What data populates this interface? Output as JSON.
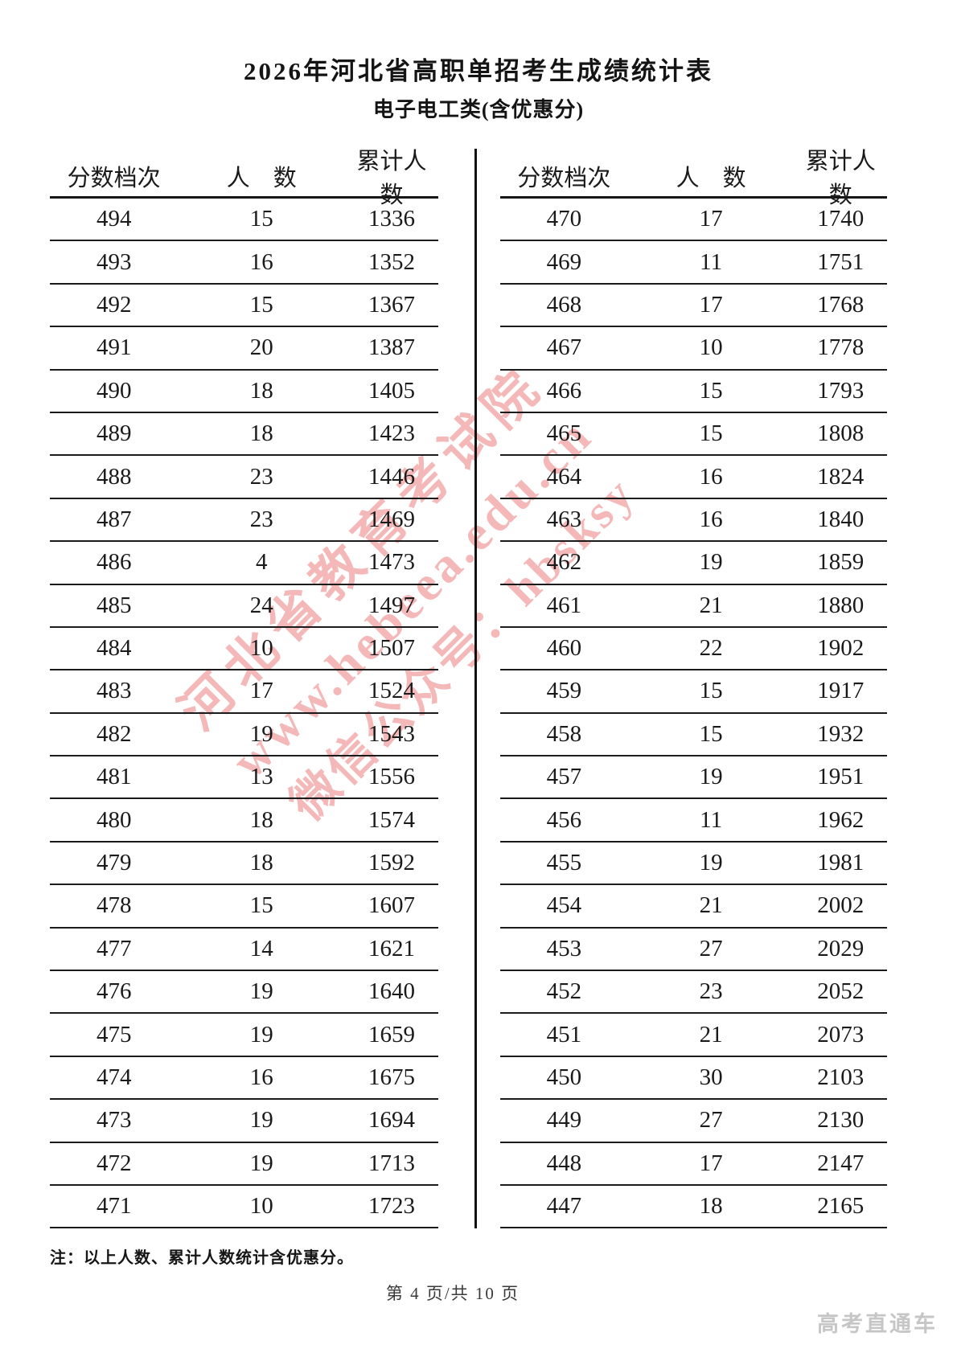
{
  "page": {
    "title": "2026年河北省高职单招考生成绩统计表",
    "subtitle": "电子电工类(含优惠分)",
    "note": "注：以上人数、累计人数统计含优惠分。",
    "footer": "第 4 页/共 10 页",
    "brand": "高考直通车"
  },
  "watermark": {
    "color": "#eb7e7e",
    "lines": [
      "河北省教育考试院",
      "www.hebeea.edu.cn",
      "微信公众号：hbsksy"
    ]
  },
  "table": {
    "headers": [
      "分数档次",
      "人　数",
      "累计人数"
    ],
    "left_rows": [
      [
        494,
        15,
        1336
      ],
      [
        493,
        16,
        1352
      ],
      [
        492,
        15,
        1367
      ],
      [
        491,
        20,
        1387
      ],
      [
        490,
        18,
        1405
      ],
      [
        489,
        18,
        1423
      ],
      [
        488,
        23,
        1446
      ],
      [
        487,
        23,
        1469
      ],
      [
        486,
        4,
        1473
      ],
      [
        485,
        24,
        1497
      ],
      [
        484,
        10,
        1507
      ],
      [
        483,
        17,
        1524
      ],
      [
        482,
        19,
        1543
      ],
      [
        481,
        13,
        1556
      ],
      [
        480,
        18,
        1574
      ],
      [
        479,
        18,
        1592
      ],
      [
        478,
        15,
        1607
      ],
      [
        477,
        14,
        1621
      ],
      [
        476,
        19,
        1640
      ],
      [
        475,
        19,
        1659
      ],
      [
        474,
        16,
        1675
      ],
      [
        473,
        19,
        1694
      ],
      [
        472,
        19,
        1713
      ],
      [
        471,
        10,
        1723
      ]
    ],
    "right_rows": [
      [
        470,
        17,
        1740
      ],
      [
        469,
        11,
        1751
      ],
      [
        468,
        17,
        1768
      ],
      [
        467,
        10,
        1778
      ],
      [
        466,
        15,
        1793
      ],
      [
        465,
        15,
        1808
      ],
      [
        464,
        16,
        1824
      ],
      [
        463,
        16,
        1840
      ],
      [
        462,
        19,
        1859
      ],
      [
        461,
        21,
        1880
      ],
      [
        460,
        22,
        1902
      ],
      [
        459,
        15,
        1917
      ],
      [
        458,
        15,
        1932
      ],
      [
        457,
        19,
        1951
      ],
      [
        456,
        11,
        1962
      ],
      [
        455,
        19,
        1981
      ],
      [
        454,
        21,
        2002
      ],
      [
        453,
        27,
        2029
      ],
      [
        452,
        23,
        2052
      ],
      [
        451,
        21,
        2073
      ],
      [
        450,
        30,
        2103
      ],
      [
        449,
        27,
        2130
      ],
      [
        448,
        17,
        2147
      ],
      [
        447,
        18,
        2165
      ]
    ]
  }
}
